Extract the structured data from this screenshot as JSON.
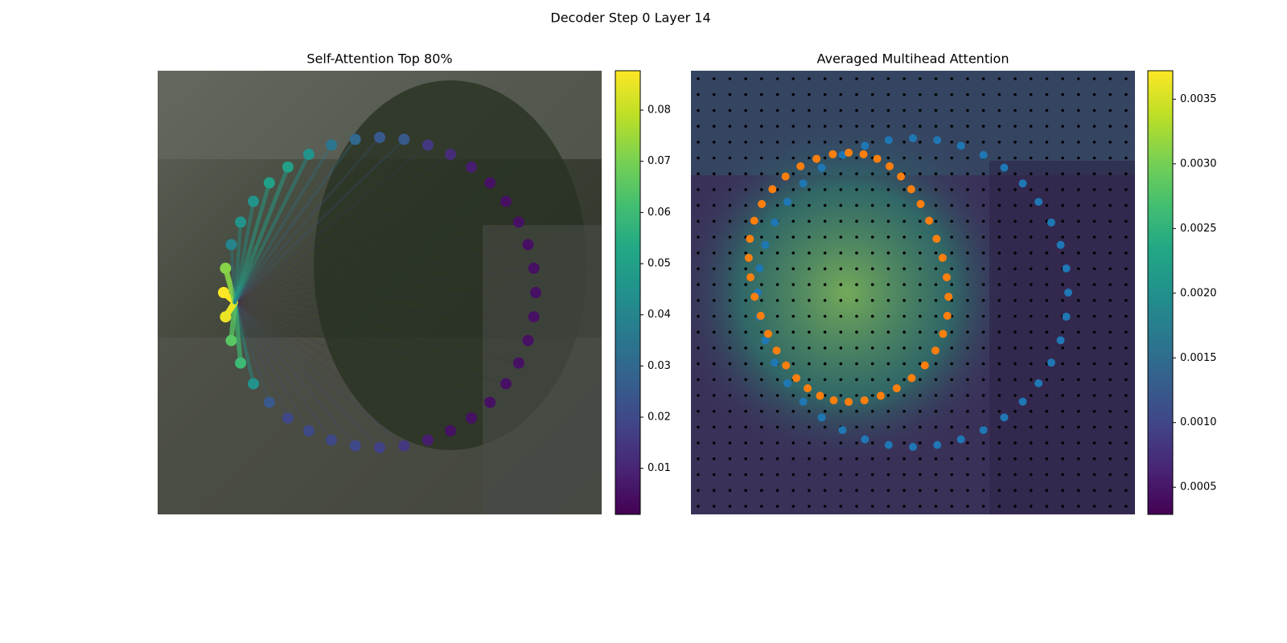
{
  "title": "Decoder Step 0 Layer 14",
  "chart_data": [
    {
      "type": "attention",
      "title": "Self-Attention Top 80%",
      "values": [
        0.025,
        0.025,
        0.015,
        0.012,
        0.008,
        0.005,
        0.005,
        0.005,
        0.005,
        0.005,
        0.005,
        0.005,
        0.005,
        0.005,
        0.005,
        0.005,
        0.005,
        0.005,
        0.008,
        0.015,
        0.018,
        0.02,
        0.02,
        0.02,
        0.02,
        0.025,
        0.045,
        0.06,
        0.065,
        0.085,
        0.088,
        0.072,
        0.04,
        0.045,
        0.045,
        0.05,
        0.05,
        0.045,
        0.035,
        0.03
      ],
      "colorbar": {
        "lim": [
          0.001,
          0.0877
        ],
        "ticks": [
          0.01,
          0.02,
          0.03,
          0.04,
          0.05,
          0.06,
          0.07,
          0.08
        ]
      }
    },
    {
      "type": "heatmap",
      "title": "Averaged Multihead Attention",
      "colorbar": {
        "lim": [
          0.00029,
          0.00372
        ],
        "ticks": [
          0.0005,
          {
            "value": 0.001,
            "label": "0.0010"
          },
          {
            "value": 0.0015,
            "label": "0.0015"
          },
          {
            "value": 0.002,
            "label": "0.0020"
          },
          0.0025,
          {
            "value": 0.003,
            "label": "0.0030"
          },
          0.0035
        ]
      }
    }
  ]
}
